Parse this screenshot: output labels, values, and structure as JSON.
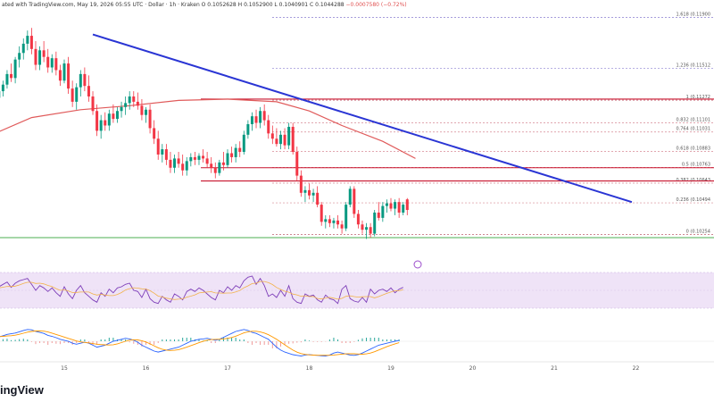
{
  "header": {
    "prefix": "ated with TradingView.com, May 19, 2026 05:55 UTC",
    "instrument": "· Dollar · 1h · Kraken",
    "ohlc": "O 0.1052628  H 0.1052900  L 0.1040901  C 0.1044288",
    "change": "−0.0007580 (−0.72%)"
  },
  "brand": "ingView",
  "chart_data": {
    "type": "candlestick",
    "x_ticks": [
      "15",
      "16",
      "17",
      "18",
      "19",
      "20",
      "21",
      "22"
    ],
    "ylim": [
      0.1,
      0.1195
    ],
    "fib_levels": [
      {
        "label": "1.618 (0.11900",
        "ratio": 1.618,
        "value": 0.119
      },
      {
        "label": "1.236 (0.11512",
        "ratio": 1.236,
        "value": 0.11512
      },
      {
        "label": "1 (0.11272",
        "ratio": 1,
        "value": 0.11272
      },
      {
        "label": "0.832 (0.11101",
        "ratio": 0.832,
        "value": 0.11101
      },
      {
        "label": "0.764 (0.11031",
        "ratio": 0.764,
        "value": 0.11031
      },
      {
        "label": "0.618 (0.10883",
        "ratio": 0.618,
        "value": 0.10883
      },
      {
        "label": "0.5 (0.10763",
        "ratio": 0.5,
        "value": 0.10763
      },
      {
        "label": "0.382 (0.10643",
        "ratio": 0.382,
        "value": 0.10643
      },
      {
        "label": "0.236 (0.10494",
        "ratio": 0.236,
        "value": 0.10494
      },
      {
        "label": "0 (0.10254",
        "ratio": 0,
        "value": 0.10254
      }
    ],
    "resistance_levels": [
      0.1128,
      0.1076,
      0.1066
    ],
    "support_level": 0.1023,
    "trendline": {
      "from": {
        "day": 15.35,
        "value": 0.1177
      },
      "to": {
        "day": 21.95,
        "value": 0.105
      }
    },
    "sma_path": [
      [
        14.0,
        0.1098
      ],
      [
        14.6,
        0.1114
      ],
      [
        15.2,
        0.112
      ],
      [
        15.8,
        0.1123
      ],
      [
        16.4,
        0.1127
      ],
      [
        17.0,
        0.1128
      ],
      [
        17.6,
        0.1126
      ],
      [
        18.0,
        0.1119
      ],
      [
        18.4,
        0.1108
      ],
      [
        18.9,
        0.1096
      ],
      [
        19.3,
        0.1083
      ]
    ],
    "candles": [
      {
        "day": 14.05,
        "o": 0.1133,
        "h": 0.1136,
        "l": 0.1118,
        "c": 0.1122
      },
      {
        "day": 14.1,
        "o": 0.1122,
        "h": 0.1126,
        "l": 0.1112,
        "c": 0.1118
      },
      {
        "day": 14.15,
        "o": 0.1118,
        "h": 0.1132,
        "l": 0.1114,
        "c": 0.1129
      },
      {
        "day": 14.2,
        "o": 0.1129,
        "h": 0.1137,
        "l": 0.1124,
        "c": 0.1134
      },
      {
        "day": 14.25,
        "o": 0.1134,
        "h": 0.1142,
        "l": 0.113,
        "c": 0.1139
      },
      {
        "day": 14.3,
        "o": 0.1139,
        "h": 0.115,
        "l": 0.1136,
        "c": 0.1147
      },
      {
        "day": 14.35,
        "o": 0.1147,
        "h": 0.1155,
        "l": 0.1141,
        "c": 0.1144
      },
      {
        "day": 14.4,
        "o": 0.1144,
        "h": 0.116,
        "l": 0.114,
        "c": 0.1158
      },
      {
        "day": 14.45,
        "o": 0.1158,
        "h": 0.1168,
        "l": 0.1152,
        "c": 0.1163
      },
      {
        "day": 14.5,
        "o": 0.1163,
        "h": 0.1174,
        "l": 0.1158,
        "c": 0.117
      },
      {
        "day": 14.55,
        "o": 0.117,
        "h": 0.118,
        "l": 0.1165,
        "c": 0.1176
      },
      {
        "day": 14.6,
        "o": 0.1176,
        "h": 0.1182,
        "l": 0.1162,
        "c": 0.1166
      },
      {
        "day": 14.65,
        "o": 0.1166,
        "h": 0.1172,
        "l": 0.115,
        "c": 0.1154
      },
      {
        "day": 14.7,
        "o": 0.1154,
        "h": 0.1168,
        "l": 0.115,
        "c": 0.1165
      },
      {
        "day": 14.75,
        "o": 0.1165,
        "h": 0.1172,
        "l": 0.1156,
        "c": 0.116
      },
      {
        "day": 14.8,
        "o": 0.116,
        "h": 0.1166,
        "l": 0.1148,
        "c": 0.1152
      },
      {
        "day": 14.85,
        "o": 0.1152,
        "h": 0.1162,
        "l": 0.1148,
        "c": 0.1159
      },
      {
        "day": 14.9,
        "o": 0.1159,
        "h": 0.1164,
        "l": 0.1146,
        "c": 0.115
      },
      {
        "day": 14.95,
        "o": 0.115,
        "h": 0.1154,
        "l": 0.1138,
        "c": 0.1142
      },
      {
        "day": 15.0,
        "o": 0.1142,
        "h": 0.1158,
        "l": 0.114,
        "c": 0.1155
      },
      {
        "day": 15.05,
        "o": 0.1155,
        "h": 0.116,
        "l": 0.1132,
        "c": 0.1136
      },
      {
        "day": 15.1,
        "o": 0.1136,
        "h": 0.1142,
        "l": 0.1122,
        "c": 0.1126
      },
      {
        "day": 15.15,
        "o": 0.1126,
        "h": 0.114,
        "l": 0.112,
        "c": 0.1137
      },
      {
        "day": 15.2,
        "o": 0.1137,
        "h": 0.115,
        "l": 0.113,
        "c": 0.1147
      },
      {
        "day": 15.25,
        "o": 0.1147,
        "h": 0.1152,
        "l": 0.1134,
        "c": 0.1138
      },
      {
        "day": 15.3,
        "o": 0.1138,
        "h": 0.1146,
        "l": 0.1126,
        "c": 0.113
      },
      {
        "day": 15.35,
        "o": 0.113,
        "h": 0.1134,
        "l": 0.1116,
        "c": 0.1119
      },
      {
        "day": 15.4,
        "o": 0.1119,
        "h": 0.1124,
        "l": 0.11,
        "c": 0.1104
      },
      {
        "day": 15.45,
        "o": 0.1104,
        "h": 0.1116,
        "l": 0.1098,
        "c": 0.1112
      },
      {
        "day": 15.5,
        "o": 0.1112,
        "h": 0.1118,
        "l": 0.1104,
        "c": 0.1108
      },
      {
        "day": 15.55,
        "o": 0.1108,
        "h": 0.112,
        "l": 0.1104,
        "c": 0.1117
      },
      {
        "day": 15.6,
        "o": 0.1117,
        "h": 0.1124,
        "l": 0.111,
        "c": 0.1113
      },
      {
        "day": 15.65,
        "o": 0.1113,
        "h": 0.1122,
        "l": 0.111,
        "c": 0.1119
      },
      {
        "day": 15.7,
        "o": 0.1119,
        "h": 0.1126,
        "l": 0.1114,
        "c": 0.1122
      },
      {
        "day": 15.75,
        "o": 0.1122,
        "h": 0.113,
        "l": 0.1116,
        "c": 0.1125
      },
      {
        "day": 15.8,
        "o": 0.1125,
        "h": 0.1134,
        "l": 0.112,
        "c": 0.113
      },
      {
        "day": 15.85,
        "o": 0.113,
        "h": 0.1134,
        "l": 0.1122,
        "c": 0.1126
      },
      {
        "day": 15.9,
        "o": 0.1126,
        "h": 0.1133,
        "l": 0.112,
        "c": 0.1123
      },
      {
        "day": 15.95,
        "o": 0.1123,
        "h": 0.1128,
        "l": 0.1112,
        "c": 0.1116
      },
      {
        "day": 16.0,
        "o": 0.1116,
        "h": 0.1122,
        "l": 0.111,
        "c": 0.112
      },
      {
        "day": 16.05,
        "o": 0.112,
        "h": 0.1124,
        "l": 0.1102,
        "c": 0.1106
      },
      {
        "day": 16.1,
        "o": 0.1106,
        "h": 0.1112,
        "l": 0.1094,
        "c": 0.1098
      },
      {
        "day": 16.15,
        "o": 0.1098,
        "h": 0.1104,
        "l": 0.1082,
        "c": 0.1086
      },
      {
        "day": 16.2,
        "o": 0.1086,
        "h": 0.1094,
        "l": 0.108,
        "c": 0.109
      },
      {
        "day": 16.25,
        "o": 0.109,
        "h": 0.1094,
        "l": 0.1078,
        "c": 0.1082
      },
      {
        "day": 16.3,
        "o": 0.1082,
        "h": 0.1088,
        "l": 0.1072,
        "c": 0.1076
      },
      {
        "day": 16.35,
        "o": 0.1076,
        "h": 0.1086,
        "l": 0.1072,
        "c": 0.1083
      },
      {
        "day": 16.4,
        "o": 0.1083,
        "h": 0.1088,
        "l": 0.1076,
        "c": 0.1079
      },
      {
        "day": 16.45,
        "o": 0.1079,
        "h": 0.1086,
        "l": 0.107,
        "c": 0.1074
      },
      {
        "day": 16.5,
        "o": 0.1074,
        "h": 0.1084,
        "l": 0.107,
        "c": 0.1081
      },
      {
        "day": 16.55,
        "o": 0.1081,
        "h": 0.1087,
        "l": 0.1077,
        "c": 0.1084
      },
      {
        "day": 16.6,
        "o": 0.1084,
        "h": 0.1088,
        "l": 0.1078,
        "c": 0.1082
      },
      {
        "day": 16.65,
        "o": 0.1082,
        "h": 0.1087,
        "l": 0.1078,
        "c": 0.1085
      },
      {
        "day": 16.7,
        "o": 0.1085,
        "h": 0.109,
        "l": 0.108,
        "c": 0.1083
      },
      {
        "day": 16.75,
        "o": 0.1083,
        "h": 0.1088,
        "l": 0.1076,
        "c": 0.1079
      },
      {
        "day": 16.8,
        "o": 0.1079,
        "h": 0.1084,
        "l": 0.1072,
        "c": 0.1076
      },
      {
        "day": 16.85,
        "o": 0.1076,
        "h": 0.108,
        "l": 0.1068,
        "c": 0.1072
      },
      {
        "day": 16.9,
        "o": 0.1072,
        "h": 0.1082,
        "l": 0.107,
        "c": 0.108
      },
      {
        "day": 16.95,
        "o": 0.108,
        "h": 0.1088,
        "l": 0.1074,
        "c": 0.1078
      },
      {
        "day": 17.0,
        "o": 0.1078,
        "h": 0.109,
        "l": 0.1076,
        "c": 0.1087
      },
      {
        "day": 17.05,
        "o": 0.1087,
        "h": 0.1092,
        "l": 0.108,
        "c": 0.1084
      },
      {
        "day": 17.1,
        "o": 0.1084,
        "h": 0.1094,
        "l": 0.108,
        "c": 0.1091
      },
      {
        "day": 17.15,
        "o": 0.1091,
        "h": 0.1096,
        "l": 0.1084,
        "c": 0.1088
      },
      {
        "day": 17.2,
        "o": 0.1088,
        "h": 0.1104,
        "l": 0.1086,
        "c": 0.1101
      },
      {
        "day": 17.25,
        "o": 0.1101,
        "h": 0.1112,
        "l": 0.1098,
        "c": 0.1109
      },
      {
        "day": 17.3,
        "o": 0.1109,
        "h": 0.1118,
        "l": 0.1104,
        "c": 0.1115
      },
      {
        "day": 17.35,
        "o": 0.1115,
        "h": 0.112,
        "l": 0.1106,
        "c": 0.111
      },
      {
        "day": 17.4,
        "o": 0.111,
        "h": 0.1122,
        "l": 0.1106,
        "c": 0.1119
      },
      {
        "day": 17.45,
        "o": 0.1119,
        "h": 0.1124,
        "l": 0.1108,
        "c": 0.1112
      },
      {
        "day": 17.5,
        "o": 0.1112,
        "h": 0.1116,
        "l": 0.1098,
        "c": 0.1102
      },
      {
        "day": 17.55,
        "o": 0.1102,
        "h": 0.1108,
        "l": 0.1094,
        "c": 0.1098
      },
      {
        "day": 17.6,
        "o": 0.1098,
        "h": 0.1106,
        "l": 0.1092,
        "c": 0.1094
      },
      {
        "day": 17.65,
        "o": 0.1094,
        "h": 0.1104,
        "l": 0.109,
        "c": 0.1101
      },
      {
        "day": 17.7,
        "o": 0.1101,
        "h": 0.1106,
        "l": 0.109,
        "c": 0.1093
      },
      {
        "day": 17.75,
        "o": 0.1093,
        "h": 0.111,
        "l": 0.109,
        "c": 0.1107
      },
      {
        "day": 17.8,
        "o": 0.1107,
        "h": 0.111,
        "l": 0.1086,
        "c": 0.1088
      },
      {
        "day": 17.85,
        "o": 0.1088,
        "h": 0.1092,
        "l": 0.1066,
        "c": 0.107
      },
      {
        "day": 17.9,
        "o": 0.107,
        "h": 0.1074,
        "l": 0.1054,
        "c": 0.1057
      },
      {
        "day": 17.95,
        "o": 0.1057,
        "h": 0.1062,
        "l": 0.105,
        "c": 0.1059
      },
      {
        "day": 18.0,
        "o": 0.1059,
        "h": 0.1064,
        "l": 0.1052,
        "c": 0.1055
      },
      {
        "day": 18.05,
        "o": 0.1055,
        "h": 0.106,
        "l": 0.105,
        "c": 0.1057
      },
      {
        "day": 18.1,
        "o": 0.1057,
        "h": 0.1062,
        "l": 0.1046,
        "c": 0.1048
      },
      {
        "day": 18.15,
        "o": 0.1048,
        "h": 0.105,
        "l": 0.1032,
        "c": 0.1035
      },
      {
        "day": 18.2,
        "o": 0.1035,
        "h": 0.104,
        "l": 0.103,
        "c": 0.1037
      },
      {
        "day": 18.25,
        "o": 0.1037,
        "h": 0.104,
        "l": 0.1031,
        "c": 0.1034
      },
      {
        "day": 18.3,
        "o": 0.1034,
        "h": 0.1038,
        "l": 0.103,
        "c": 0.1036
      },
      {
        "day": 18.35,
        "o": 0.1036,
        "h": 0.104,
        "l": 0.103,
        "c": 0.1033
      },
      {
        "day": 18.4,
        "o": 0.1033,
        "h": 0.1036,
        "l": 0.1026,
        "c": 0.103
      },
      {
        "day": 18.45,
        "o": 0.103,
        "h": 0.105,
        "l": 0.1028,
        "c": 0.1048
      },
      {
        "day": 18.5,
        "o": 0.1048,
        "h": 0.1062,
        "l": 0.1046,
        "c": 0.106
      },
      {
        "day": 18.55,
        "o": 0.106,
        "h": 0.1062,
        "l": 0.1038,
        "c": 0.1041
      },
      {
        "day": 18.6,
        "o": 0.1041,
        "h": 0.1044,
        "l": 0.103,
        "c": 0.1033
      },
      {
        "day": 18.65,
        "o": 0.1033,
        "h": 0.1036,
        "l": 0.1026,
        "c": 0.1029
      },
      {
        "day": 18.7,
        "o": 0.1029,
        "h": 0.1034,
        "l": 0.1022,
        "c": 0.1031
      },
      {
        "day": 18.75,
        "o": 0.1031,
        "h": 0.1034,
        "l": 0.1023,
        "c": 0.1026
      },
      {
        "day": 18.8,
        "o": 0.1026,
        "h": 0.1044,
        "l": 0.1024,
        "c": 0.1042
      },
      {
        "day": 18.85,
        "o": 0.1042,
        "h": 0.105,
        "l": 0.1036,
        "c": 0.1038
      },
      {
        "day": 18.9,
        "o": 0.1038,
        "h": 0.105,
        "l": 0.1035,
        "c": 0.1047
      },
      {
        "day": 18.95,
        "o": 0.1047,
        "h": 0.1052,
        "l": 0.1042,
        "c": 0.1049
      },
      {
        "day": 19.0,
        "o": 0.1049,
        "h": 0.1053,
        "l": 0.1043,
        "c": 0.1045
      },
      {
        "day": 19.05,
        "o": 0.1045,
        "h": 0.1052,
        "l": 0.104,
        "c": 0.105
      },
      {
        "day": 19.1,
        "o": 0.105,
        "h": 0.1053,
        "l": 0.1038,
        "c": 0.1042
      },
      {
        "day": 19.15,
        "o": 0.1042,
        "h": 0.105,
        "l": 0.104,
        "c": 0.1048
      },
      {
        "day": 19.2,
        "o": 0.1052,
        "h": 0.1053,
        "l": 0.104,
        "c": 0.1044
      }
    ],
    "rsi": {
      "ylim": [
        20,
        80
      ],
      "band": [
        30,
        70
      ],
      "values": [
        58,
        52,
        50,
        56,
        60,
        64,
        55,
        62,
        66,
        68,
        70,
        60,
        50,
        58,
        54,
        48,
        54,
        46,
        40,
        56,
        44,
        36,
        50,
        58,
        46,
        40,
        34,
        30,
        46,
        40,
        52,
        46,
        54,
        56,
        60,
        62,
        50,
        48,
        38,
        52,
        36,
        30,
        28,
        40,
        34,
        30,
        44,
        40,
        34,
        48,
        52,
        48,
        54,
        50,
        44,
        38,
        34,
        50,
        46,
        56,
        50,
        58,
        54,
        66,
        72,
        74,
        60,
        70,
        58,
        40,
        44,
        38,
        50,
        40,
        58,
        36,
        30,
        28,
        44,
        40,
        42,
        34,
        30,
        42,
        36,
        34,
        28,
        52,
        58,
        36,
        32,
        30,
        38,
        30,
        52,
        44,
        50,
        52,
        48,
        54,
        46,
        52,
        55
      ]
    },
    "macd": {
      "ylim": [
        -1,
        1
      ],
      "values": [
        0.3,
        0.25,
        0.2,
        0.22,
        0.28,
        0.35,
        0.38,
        0.42,
        0.48,
        0.55,
        0.6,
        0.58,
        0.5,
        0.45,
        0.4,
        0.3,
        0.25,
        0.18,
        0.1,
        0.05,
        0.0,
        -0.1,
        -0.15,
        -0.1,
        -0.05,
        -0.1,
        -0.2,
        -0.3,
        -0.25,
        -0.2,
        -0.1,
        0.0,
        0.05,
        0.1,
        0.15,
        0.12,
        0.05,
        -0.05,
        -0.2,
        -0.3,
        -0.4,
        -0.5,
        -0.55,
        -0.5,
        -0.45,
        -0.4,
        -0.35,
        -0.3,
        -0.2,
        -0.1,
        0.0,
        0.05,
        0.1,
        0.12,
        0.15,
        0.1,
        0.05,
        0.1,
        0.2,
        0.3,
        0.4,
        0.5,
        0.55,
        0.6,
        0.55,
        0.45,
        0.4,
        0.3,
        0.2,
        0.1,
        -0.1,
        -0.3,
        -0.45,
        -0.55,
        -0.62,
        -0.68,
        -0.72,
        -0.75,
        -0.7,
        -0.68,
        -0.7,
        -0.72,
        -0.74,
        -0.75,
        -0.7,
        -0.6,
        -0.55,
        -0.6,
        -0.65,
        -0.7,
        -0.72,
        -0.68,
        -0.6,
        -0.5,
        -0.4,
        -0.3,
        -0.2,
        -0.15,
        -0.1,
        -0.05,
        0.0,
        0.05
      ]
    }
  }
}
